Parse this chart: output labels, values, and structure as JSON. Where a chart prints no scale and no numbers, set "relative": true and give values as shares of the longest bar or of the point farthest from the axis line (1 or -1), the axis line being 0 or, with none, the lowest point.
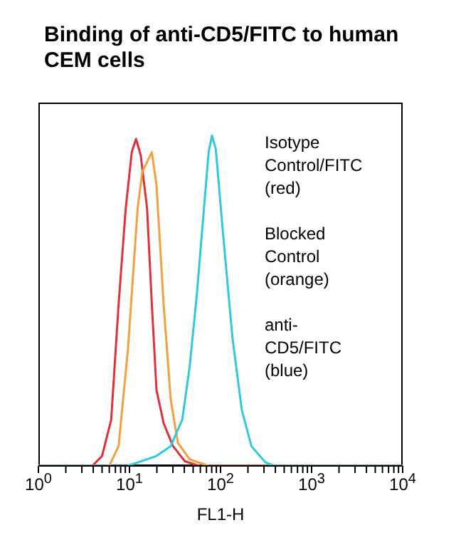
{
  "chart_data": {
    "type": "line",
    "title": "Binding of anti-CD5/FITC to human CEM cells",
    "xlabel": "FL1-H",
    "log": "x",
    "relative": true,
    "xlim": [
      1,
      10000
    ],
    "xticks": [
      {
        "value": 1,
        "label": "10$^{0}$"
      },
      {
        "value": 2,
        "label": null
      },
      {
        "value": 3,
        "label": null
      },
      {
        "value": 4,
        "label": null
      },
      {
        "value": 5,
        "label": null
      },
      {
        "value": 6,
        "label": null
      },
      {
        "value": 7,
        "label": null
      },
      {
        "value": 8,
        "label": null
      },
      {
        "value": 9,
        "label": null
      },
      {
        "value": 10,
        "label": "10$^{1}$"
      },
      {
        "value": 20,
        "label": null
      },
      {
        "value": 30,
        "label": null
      },
      {
        "value": 40,
        "label": null
      },
      {
        "value": 50,
        "label": null
      },
      {
        "value": 60,
        "label": null
      },
      {
        "value": 70,
        "label": null
      },
      {
        "value": 80,
        "label": null
      },
      {
        "value": 90,
        "label": null
      },
      {
        "value": 100,
        "label": "10$^{2}$"
      },
      {
        "value": 200,
        "label": null
      },
      {
        "value": 300,
        "label": null
      },
      {
        "value": 400,
        "label": null
      },
      {
        "value": 500,
        "label": null
      },
      {
        "value": 600,
        "label": null
      },
      {
        "value": 700,
        "label": null
      },
      {
        "value": 800,
        "label": null
      },
      {
        "value": 900,
        "label": null
      },
      {
        "value": 1000,
        "label": "10$^{3}$"
      },
      {
        "value": 2000,
        "label": null
      },
      {
        "value": 3000,
        "label": null
      },
      {
        "value": 4000,
        "label": null
      },
      {
        "value": 5000,
        "label": null
      },
      {
        "value": 6000,
        "label": null
      },
      {
        "value": 7000,
        "label": null
      },
      {
        "value": 8000,
        "label": null
      },
      {
        "value": 9000,
        "label": null
      },
      {
        "value": 10000,
        "label": "10$^{4}$"
      }
    ],
    "series": [
      {
        "color": "#e0303a",
        "x": [
          1,
          3.9,
          5.0,
          6.3,
          7.6,
          9.1,
          10.6,
          11.8,
          13.3,
          15.6,
          17.6,
          19.8,
          23.7,
          30,
          40.6,
          58,
          10000
        ],
        "values": [
          0,
          0,
          0.03,
          0.14,
          0.49,
          0.78,
          0.95,
          0.99,
          0.94,
          0.78,
          0.49,
          0.23,
          0.13,
          0.06,
          0.014,
          0,
          0
        ]
      },
      {
        "color": "#f5a040",
        "x": [
          1,
          6.0,
          7.6,
          9.6,
          12.3,
          13.8,
          15.6,
          17.6,
          19.8,
          23.7,
          28.4,
          34,
          45.8,
          74,
          10000
        ],
        "values": [
          0,
          0,
          0.06,
          0.35,
          0.78,
          0.89,
          0.92,
          0.95,
          0.85,
          0.49,
          0.2,
          0.07,
          0.02,
          0,
          0
        ]
      },
      {
        "color": "#30c8e0",
        "x": [
          1,
          9.6,
          19.8,
          28.4,
          38,
          45.8,
          55,
          65.8,
          74,
          80.5,
          88.7,
          106,
          135,
          171,
          218,
          313,
          396,
          10000
        ],
        "values": [
          0,
          0,
          0.03,
          0.06,
          0.14,
          0.3,
          0.52,
          0.78,
          0.95,
          1,
          0.96,
          0.71,
          0.39,
          0.17,
          0.06,
          0.01,
          0,
          0
        ]
      }
    ],
    "annotations": [
      "Isotype Control/FITC (red)",
      "Blocked Control (orange)",
      "anti-CD5/FITC (blue)"
    ]
  }
}
